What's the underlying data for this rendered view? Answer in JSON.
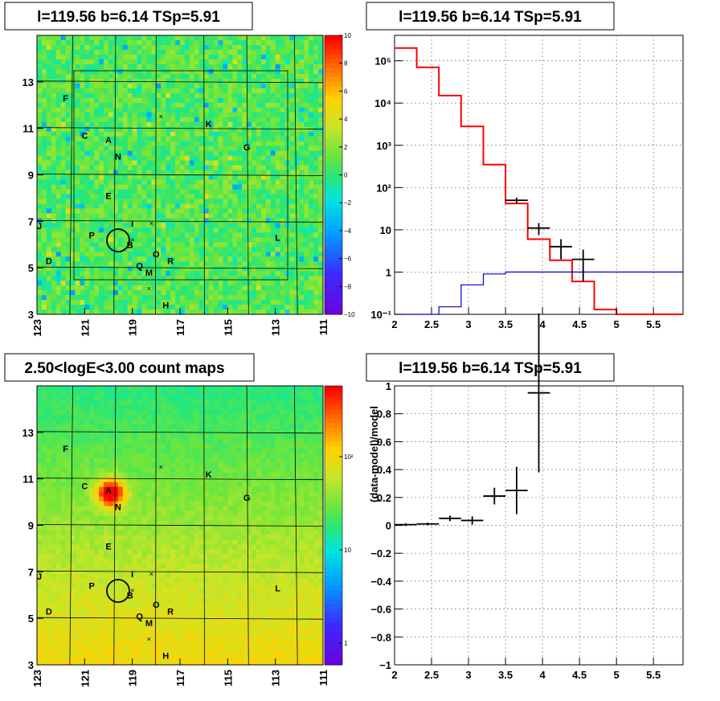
{
  "chart_data": [
    {
      "type": "heatmap",
      "title": "l=119.56 b=6.14 TSp=5.91",
      "x_ticks": [
        "123",
        "121",
        "119",
        "117",
        "115",
        "113",
        "111"
      ],
      "x_tick_values": [
        123,
        121,
        119,
        117,
        115,
        113,
        111
      ],
      "xlim": [
        123,
        111
      ],
      "y_ticks": [
        "13",
        "11",
        "9",
        "7",
        "5",
        "3"
      ],
      "y_tick_values": [
        13,
        11,
        9,
        7,
        5,
        3
      ],
      "ylim": [
        3,
        15
      ],
      "colorbar_ticks": [
        "10",
        "8",
        "6",
        "4",
        "2",
        "0",
        "−2",
        "−4",
        "−6",
        "−8",
        "−10"
      ],
      "colorbar_range": [
        -10,
        10
      ],
      "sources": [
        {
          "label": "F",
          "l": 121.8,
          "b": 12.3
        },
        {
          "label": "C",
          "l": 121.0,
          "b": 10.7
        },
        {
          "label": "A",
          "l": 120.0,
          "b": 10.5
        },
        {
          "label": "N",
          "l": 119.6,
          "b": 9.8
        },
        {
          "label": "E",
          "l": 120.0,
          "b": 8.1
        },
        {
          "label": "I",
          "l": 119.0,
          "b": 6.9
        },
        {
          "label": "P",
          "l": 120.7,
          "b": 6.4
        },
        {
          "label": "B",
          "l": 119.1,
          "b": 6.0
        },
        {
          "label": "O",
          "l": 118.0,
          "b": 5.6
        },
        {
          "label": "R",
          "l": 117.4,
          "b": 5.3
        },
        {
          "label": "Q",
          "l": 118.7,
          "b": 5.1
        },
        {
          "label": "M",
          "l": 118.3,
          "b": 4.8
        },
        {
          "label": "H",
          "l": 117.6,
          "b": 3.4
        },
        {
          "label": "J",
          "l": 122.9,
          "b": 6.8
        },
        {
          "label": "D",
          "l": 122.5,
          "b": 5.3
        },
        {
          "label": "K",
          "l": 115.8,
          "b": 11.2
        },
        {
          "label": "G",
          "l": 114.2,
          "b": 10.2
        },
        {
          "label": "L",
          "l": 112.9,
          "b": 6.3
        }
      ]
    },
    {
      "type": "line",
      "title": "l=119.56 b=6.14 TSp=5.91",
      "x_ticks": [
        "2",
        "2.5",
        "3",
        "3.5",
        "4",
        "4.5",
        "5",
        "5.5"
      ],
      "x_tick_values": [
        2,
        2.5,
        3,
        3.5,
        4,
        4.5,
        5,
        5.5
      ],
      "xlim": [
        2,
        5.9
      ],
      "y_ticks": [
        "10⁻¹",
        "1",
        "10",
        "10²",
        "10³",
        "10⁴",
        "10⁵"
      ],
      "y_tick_values": [
        0.1,
        1,
        10,
        100,
        1000,
        10000,
        100000
      ],
      "ylim": [
        0.1,
        400000
      ],
      "yscale": "log",
      "bin_edges": [
        2,
        2.3,
        2.6,
        2.9,
        3.2,
        3.5,
        3.8,
        4.1,
        4.4,
        4.7,
        5.0,
        5.3,
        5.6,
        5.9
      ],
      "data_points": [
        {
          "x": 3.65,
          "y": 50,
          "err": 8
        },
        {
          "x": 3.95,
          "y": 11,
          "err": 3.5
        },
        {
          "x": 4.25,
          "y": 4.0,
          "err": 2
        },
        {
          "x": 4.55,
          "y": 2.0,
          "err": 1.4
        }
      ],
      "series": [
        {
          "color": "#ff0000",
          "values": [
            200000,
            70000,
            15000,
            2800,
            350,
            42,
            6,
            1.9,
            0.6,
            0.13,
            0.1,
            0.1,
            0.1
          ]
        },
        {
          "color": "#0000cc",
          "values": [
            0.1,
            0.1,
            0.15,
            0.5,
            0.9,
            1.0,
            1.0,
            1.0,
            1.0,
            1.0,
            1.0,
            1.0,
            1.0
          ]
        }
      ]
    },
    {
      "type": "heatmap",
      "title": "2.50<logE<3.00 count maps",
      "x_ticks": [
        "123",
        "121",
        "119",
        "117",
        "115",
        "113",
        "111"
      ],
      "y_ticks": [
        "13",
        "11",
        "9",
        "7",
        "5",
        "3"
      ],
      "colorbar_ticks": [
        "10²",
        "10",
        "1"
      ],
      "colorbar_scale": "log",
      "peak_source": {
        "l": 120.0,
        "b": 10.5
      }
    },
    {
      "type": "scatter",
      "title": "l=119.56 b=6.14 TSp=5.91",
      "ylabel": "(data-model)/model",
      "x_ticks": [
        "2",
        "2.5",
        "3",
        "3.5",
        "4",
        "4.5",
        "5",
        "5.5"
      ],
      "x_tick_values": [
        2,
        2.5,
        3,
        3.5,
        4,
        4.5,
        5,
        5.5
      ],
      "xlim": [
        2,
        5.9
      ],
      "y_ticks": [
        "1",
        "0.8",
        "0.6",
        "0.4",
        "0.2",
        "0",
        "−0.2",
        "−0.4",
        "−0.6",
        "−0.8",
        "−1"
      ],
      "y_tick_values": [
        1,
        0.8,
        0.6,
        0.4,
        0.2,
        0,
        -0.2,
        -0.4,
        -0.6,
        -0.8,
        -1
      ],
      "ylim": [
        -1,
        1
      ],
      "points": [
        {
          "x": 2.15,
          "y": 0.005,
          "xerr": 0.15,
          "yerr": 0.01
        },
        {
          "x": 2.45,
          "y": 0.01,
          "xerr": 0.15,
          "yerr": 0.01
        },
        {
          "x": 2.75,
          "y": 0.05,
          "xerr": 0.15,
          "yerr": 0.02
        },
        {
          "x": 3.05,
          "y": 0.035,
          "xerr": 0.15,
          "yerr": 0.03
        },
        {
          "x": 3.35,
          "y": 0.21,
          "xerr": 0.15,
          "yerr": 0.06
        },
        {
          "x": 3.65,
          "y": 0.25,
          "xerr": 0.15,
          "yerr": 0.17
        },
        {
          "x": 3.95,
          "y": 0.95,
          "xerr": 0.15,
          "yerr": 0.57
        }
      ]
    }
  ]
}
